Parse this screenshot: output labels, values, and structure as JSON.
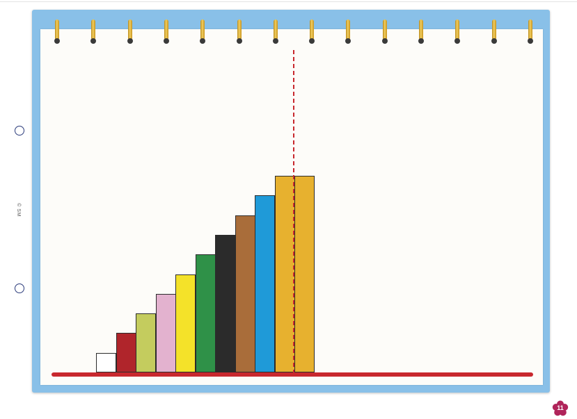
{
  "copyright": "© SM",
  "page_number": "11",
  "rods": [
    {
      "value": 1,
      "color": "#ffffff"
    },
    {
      "value": 2,
      "color": "#b0252b"
    },
    {
      "value": 3,
      "color": "#c4cc5e"
    },
    {
      "value": 4,
      "color": "#e3b2cf"
    },
    {
      "value": 5,
      "color": "#f4e229"
    },
    {
      "value": 6,
      "color": "#2f9148"
    },
    {
      "value": 7,
      "color": "#2b2b2b"
    },
    {
      "value": 8,
      "color": "#a96d3a"
    },
    {
      "value": 9,
      "color": "#1f9ad8"
    },
    {
      "value": 10,
      "color": "#e7b12f"
    },
    {
      "value": 10,
      "color": "#e7b12f"
    }
  ],
  "colors": {
    "notebook": "#89c0e8",
    "baseline": "#c8282e",
    "guide": "#c8282e",
    "badge": "#b0245a"
  }
}
